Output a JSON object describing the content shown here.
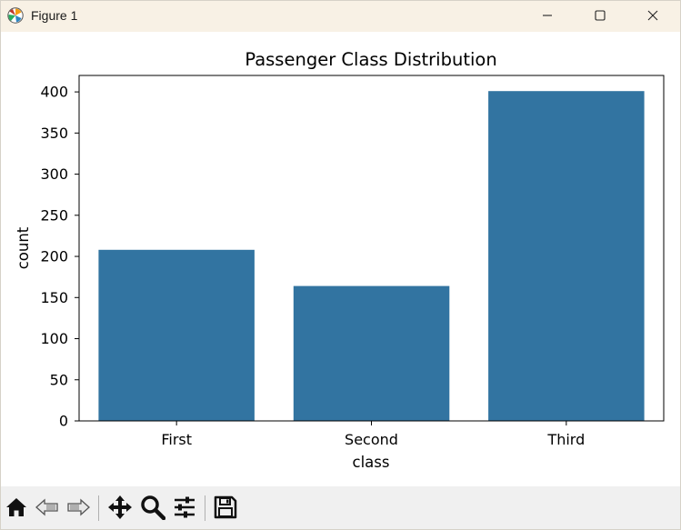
{
  "window": {
    "title": "Figure 1"
  },
  "toolbar": {
    "icons": [
      "home-icon",
      "back-icon",
      "forward-icon",
      "pan-icon",
      "zoom-icon",
      "configure-subplots-icon",
      "save-icon"
    ]
  },
  "colors": {
    "bar": "#3274a1",
    "titlebar": "#f8f1e5",
    "toolbar": "#f0f0f0"
  },
  "chart_data": {
    "type": "bar",
    "title": "Passenger Class Distribution",
    "xlabel": "class",
    "ylabel": "count",
    "categories": [
      "First",
      "Second",
      "Third"
    ],
    "values": [
      208,
      164,
      401
    ],
    "ylim": [
      0,
      420
    ],
    "yticks": [
      0,
      50,
      100,
      150,
      200,
      250,
      300,
      350,
      400
    ],
    "grid": false
  }
}
